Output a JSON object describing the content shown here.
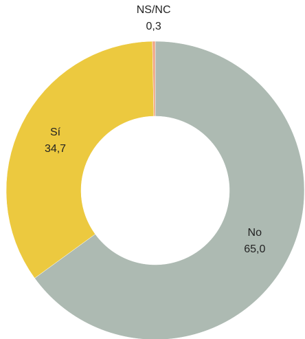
{
  "chart_data": {
    "type": "donut",
    "categories": [
      "No",
      "Sí",
      "NS/NC"
    ],
    "values": [
      65.0,
      34.7,
      0.3
    ],
    "value_labels": [
      "65,0",
      "34,7",
      "0,3"
    ],
    "colors": [
      "#adbab2",
      "#ecc93f",
      "#f0a584"
    ]
  }
}
